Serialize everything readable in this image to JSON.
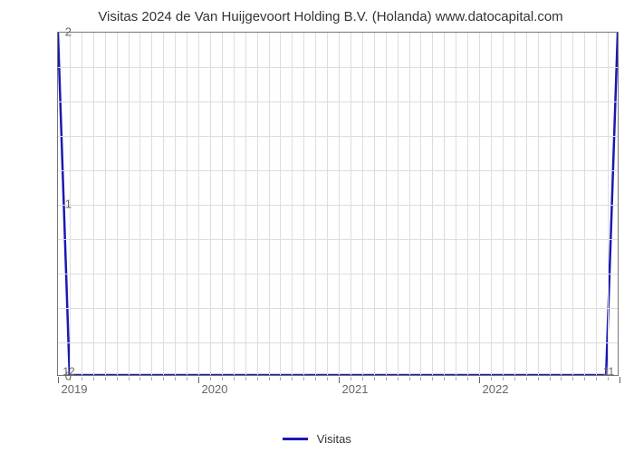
{
  "chart": {
    "type": "line",
    "title": "Visitas 2024 de Van Huijgevoort Holding B.V. (Holanda) www.datocapital.com",
    "title_fontsize": 15,
    "background_color": "#ffffff",
    "grid_color": "#dddddd",
    "axis_color": "#777777",
    "tick_label_color": "#666666",
    "tick_label_fontsize": 13,
    "x_axis": {
      "range_start": 2019,
      "range_end": 2023,
      "major_ticks": [
        2019,
        2020,
        2021,
        2022
      ],
      "major_tick_labels": [
        "2019",
        "2020",
        "2021",
        "2022"
      ],
      "minor_tick_count_per_major": 12
    },
    "y_axis": {
      "range_min": 0,
      "range_max": 2,
      "major_ticks": [
        0,
        1,
        2
      ],
      "major_tick_labels": [
        "0",
        "1",
        "2"
      ],
      "minor_grid_count_between": 4
    },
    "series": [
      {
        "name": "Visitas",
        "color": "#1919b3",
        "line_width": 2.5,
        "points": [
          {
            "x": 2019.0,
            "y": 12,
            "y_clipped": 2,
            "label": "12"
          },
          {
            "x": 2019.083,
            "y": 0,
            "y_clipped": 0,
            "label": null
          },
          {
            "x": 2022.917,
            "y": 0,
            "y_clipped": 0,
            "label": null
          },
          {
            "x": 2023.0,
            "y": 11,
            "y_clipped": 2,
            "label": "11"
          }
        ]
      }
    ],
    "legend": {
      "label": "Visitas",
      "swatch_color": "#1919b3",
      "fontsize": 13
    }
  }
}
